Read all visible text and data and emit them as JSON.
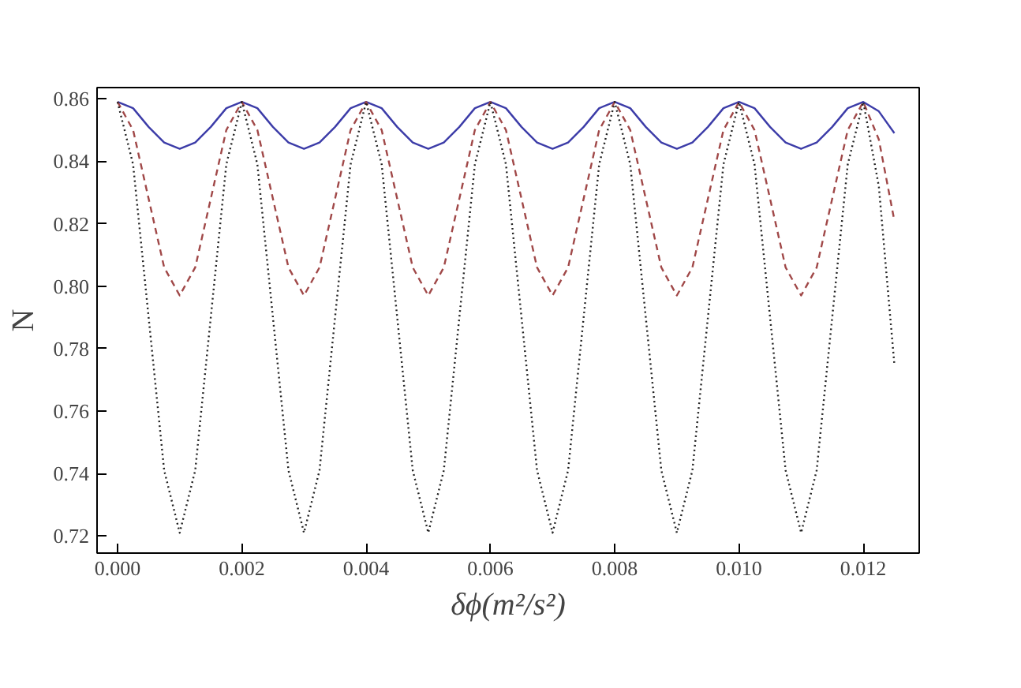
{
  "chart_data": {
    "type": "line",
    "xlabel": "δϕ(m²/s²)",
    "ylabel": "N",
    "x": [
      0,
      0.00025,
      0.0005,
      0.00075,
      0.001,
      0.00125,
      0.0015,
      0.00175,
      0.002,
      0.00225,
      0.0025,
      0.00275,
      0.003,
      0.00325,
      0.0035,
      0.00375,
      0.004,
      0.00425,
      0.0045,
      0.00475,
      0.005,
      0.00525,
      0.0055,
      0.00575,
      0.006,
      0.00625,
      0.0065,
      0.00675,
      0.007,
      0.00725,
      0.0075,
      0.00775,
      0.008,
      0.00825,
      0.0085,
      0.00875,
      0.009,
      0.00925,
      0.0095,
      0.00975,
      0.01,
      0.01025,
      0.0105,
      0.01075,
      0.011,
      0.01125,
      0.0115,
      0.01175,
      0.012,
      0.01225,
      0.0125
    ],
    "series": [
      {
        "color": "#3c3ca8",
        "line_style": "solid",
        "values": [
          0.859,
          0.857,
          0.851,
          0.846,
          0.844,
          0.846,
          0.851,
          0.857,
          0.859,
          0.857,
          0.851,
          0.846,
          0.844,
          0.846,
          0.851,
          0.857,
          0.859,
          0.857,
          0.851,
          0.846,
          0.844,
          0.846,
          0.851,
          0.857,
          0.859,
          0.857,
          0.851,
          0.846,
          0.844,
          0.846,
          0.851,
          0.857,
          0.859,
          0.857,
          0.851,
          0.846,
          0.844,
          0.846,
          0.851,
          0.857,
          0.859,
          0.857,
          0.851,
          0.846,
          0.844,
          0.846,
          0.851,
          0.857,
          0.859,
          0.856,
          0.849
        ]
      },
      {
        "color": "#a04848",
        "line_style": "dashed",
        "values": [
          0.859,
          0.85,
          0.828,
          0.806,
          0.797,
          0.806,
          0.828,
          0.85,
          0.859,
          0.85,
          0.828,
          0.806,
          0.797,
          0.806,
          0.828,
          0.85,
          0.859,
          0.85,
          0.828,
          0.806,
          0.797,
          0.806,
          0.828,
          0.85,
          0.859,
          0.85,
          0.828,
          0.806,
          0.797,
          0.806,
          0.828,
          0.85,
          0.859,
          0.85,
          0.828,
          0.806,
          0.797,
          0.806,
          0.828,
          0.85,
          0.859,
          0.85,
          0.828,
          0.806,
          0.797,
          0.806,
          0.828,
          0.85,
          0.859,
          0.847,
          0.821
        ]
      },
      {
        "color": "#222222",
        "line_style": "dotted",
        "values": [
          0.859,
          0.839,
          0.79,
          0.741,
          0.721,
          0.741,
          0.79,
          0.839,
          0.859,
          0.839,
          0.79,
          0.741,
          0.721,
          0.741,
          0.79,
          0.839,
          0.859,
          0.839,
          0.79,
          0.741,
          0.721,
          0.741,
          0.79,
          0.839,
          0.859,
          0.839,
          0.79,
          0.741,
          0.721,
          0.741,
          0.79,
          0.839,
          0.859,
          0.839,
          0.79,
          0.741,
          0.721,
          0.741,
          0.79,
          0.839,
          0.859,
          0.839,
          0.79,
          0.741,
          0.721,
          0.741,
          0.79,
          0.839,
          0.859,
          0.832,
          0.775
        ]
      }
    ],
    "xlim": [
      -0.00033,
      0.0129
    ],
    "ylim": [
      0.7145,
      0.8636
    ],
    "xticks": [
      {
        "value": 0,
        "label": "0.000"
      },
      {
        "value": 0.002,
        "label": "0.002"
      },
      {
        "value": 0.004,
        "label": "0.004"
      },
      {
        "value": 0.006,
        "label": "0.006"
      },
      {
        "value": 0.008,
        "label": "0.008"
      },
      {
        "value": 0.01,
        "label": "0.010"
      },
      {
        "value": 0.012,
        "label": "0.012"
      }
    ],
    "yticks": [
      0.72,
      0.74,
      0.76,
      0.78,
      {
        "value": 0.8,
        "label": "0.80"
      },
      0.82,
      0.84,
      {
        "value": 0.86,
        "label": "0.86"
      }
    ],
    "grid": false,
    "marker": "none"
  }
}
